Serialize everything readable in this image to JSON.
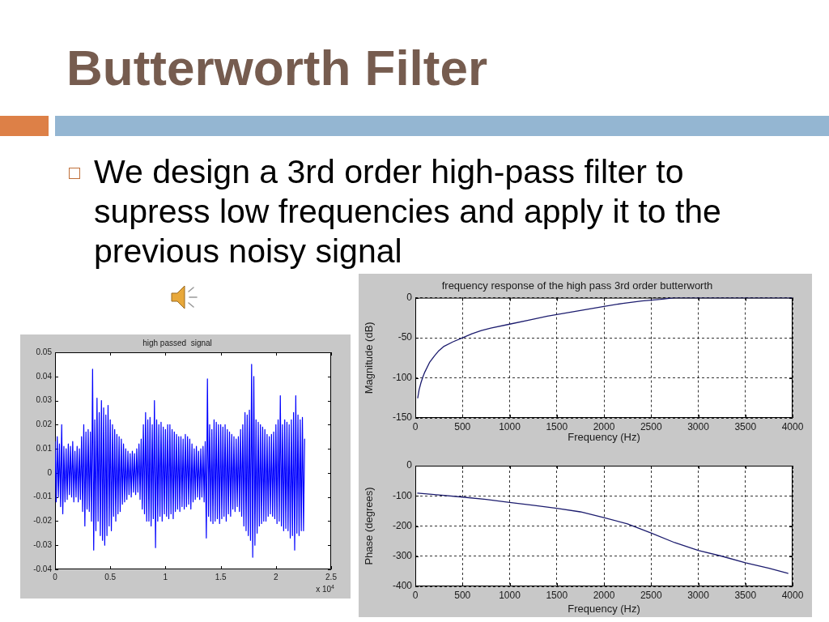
{
  "chart_data": [
    {
      "type": "other",
      "title": "Butterworth Filter",
      "annotations": [
        "We design a 3rd order high-pass filter to supress low frequencies and apply it to the previous noisy signal"
      ]
    },
    {
      "type": "line",
      "title": "high passed  signal",
      "color": "#0000ff",
      "annotations": [
        "x 10$^{4}$"
      ],
      "x": [
        0,
        0.01,
        0.02,
        0.03,
        0.04,
        0.05,
        0.06,
        0.07,
        0.08,
        0.09,
        0.1,
        0.11,
        0.12,
        0.13,
        0.14,
        0.15,
        0.16,
        0.17,
        0.18,
        0.19,
        0.2,
        0.21,
        0.22,
        0.23,
        0.24,
        0.25,
        0.26,
        0.27,
        0.28,
        0.29,
        0.3,
        0.31,
        0.32,
        0.33,
        0.34,
        0.35,
        0.36,
        0.37,
        0.38,
        0.39,
        0.4,
        0.41,
        0.42,
        0.43,
        0.44,
        0.45,
        0.46,
        0.47,
        0.48,
        0.49,
        0.5,
        0.51,
        0.52,
        0.53,
        0.54,
        0.55,
        0.56,
        0.57,
        0.58,
        0.59,
        0.6,
        0.61,
        0.62,
        0.63,
        0.64,
        0.65,
        0.66,
        0.67,
        0.68,
        0.69,
        0.7,
        0.71,
        0.72,
        0.73,
        0.74,
        0.75,
        0.76,
        0.77,
        0.78,
        0.79,
        0.8,
        0.81,
        0.82,
        0.83,
        0.84,
        0.85,
        0.86,
        0.87,
        0.88,
        0.89,
        0.9,
        0.91,
        0.92,
        0.93,
        0.94,
        0.95,
        0.96,
        0.97,
        0.98,
        0.99,
        1,
        1.01,
        1.02,
        1.03,
        1.04,
        1.05,
        1.06,
        1.07,
        1.08,
        1.09,
        1.1,
        1.11,
        1.12,
        1.13,
        1.14,
        1.15,
        1.16,
        1.17,
        1.18,
        1.19,
        1.2,
        1.21,
        1.22,
        1.23,
        1.24,
        1.25,
        1.26,
        1.27,
        1.28,
        1.29,
        1.3,
        1.31,
        1.32,
        1.33,
        1.34,
        1.35,
        1.36,
        1.37,
        1.38,
        1.39,
        1.4,
        1.41,
        1.42,
        1.43,
        1.44,
        1.45,
        1.46,
        1.47,
        1.48,
        1.49,
        1.5,
        1.51,
        1.52,
        1.53,
        1.54,
        1.55,
        1.56,
        1.57,
        1.58,
        1.59,
        1.6,
        1.61,
        1.62,
        1.63,
        1.64,
        1.65,
        1.66,
        1.67,
        1.68,
        1.69,
        1.7,
        1.71,
        1.72,
        1.73,
        1.74,
        1.75,
        1.76,
        1.77,
        1.78,
        1.79,
        1.8,
        1.81,
        1.82,
        1.83,
        1.84,
        1.85,
        1.86,
        1.87,
        1.88,
        1.89,
        1.9,
        1.91,
        1.92,
        1.93,
        1.94,
        1.95,
        1.96,
        1.97,
        1.98,
        1.99,
        2,
        2.01,
        2.02,
        2.03,
        2.04,
        2.05,
        2.06,
        2.07,
        2.08,
        2.09,
        2.1,
        2.11,
        2.12,
        2.13,
        2.14,
        2.15,
        2.16,
        2.17,
        2.18,
        2.19,
        2.2,
        2.21,
        2.22,
        2.23,
        2.24,
        2.25,
        2.26
      ],
      "values": [
        0.013,
        -0.012,
        0.015,
        -0.01,
        0.012,
        -0.014,
        0.02,
        -0.017,
        0.011,
        -0.012,
        0.01,
        -0.011,
        0.012,
        -0.009,
        0.011,
        -0.01,
        0.013,
        -0.012,
        0.009,
        -0.01,
        0.011,
        -0.012,
        0.01,
        -0.011,
        0.015,
        -0.016,
        0.02,
        -0.022,
        0.017,
        -0.015,
        0.018,
        -0.016,
        0.017,
        -0.02,
        0.043,
        -0.032,
        0.022,
        -0.024,
        0.031,
        -0.02,
        0.025,
        -0.026,
        0.03,
        -0.028,
        0.027,
        -0.03,
        0.024,
        -0.026,
        0.028,
        -0.022,
        0.022,
        -0.024,
        0.02,
        -0.018,
        0.018,
        -0.02,
        0.016,
        -0.017,
        0.015,
        -0.016,
        0.014,
        -0.013,
        0.012,
        -0.012,
        0.01,
        -0.011,
        0.009,
        -0.009,
        0.008,
        -0.01,
        0.009,
        -0.008,
        0.008,
        -0.009,
        0.01,
        -0.008,
        0.012,
        -0.011,
        0.014,
        -0.015,
        0.02,
        -0.017,
        0.025,
        -0.02,
        0.022,
        -0.02,
        0.023,
        -0.022,
        0.02,
        -0.019,
        0.03,
        -0.031,
        0.022,
        -0.02,
        0.02,
        -0.018,
        0.021,
        -0.02,
        0.019,
        -0.017,
        0.018,
        -0.018,
        0.02,
        -0.019,
        0.02,
        -0.017,
        0.018,
        -0.019,
        0.017,
        -0.016,
        0.016,
        -0.015,
        0.015,
        -0.016,
        0.015,
        -0.014,
        0.014,
        -0.015,
        0.016,
        -0.014,
        0.015,
        -0.013,
        0.014,
        -0.015,
        0.012,
        -0.012,
        0.01,
        -0.011,
        0.011,
        -0.01,
        0.009,
        -0.011,
        0.01,
        -0.01,
        0.011,
        -0.012,
        0.013,
        -0.027,
        0.039,
        -0.018,
        0.02,
        -0.02,
        0.018,
        -0.021,
        0.022,
        -0.02,
        0.021,
        -0.019,
        0.02,
        -0.021,
        0.02,
        -0.019,
        0.019,
        -0.018,
        0.02,
        -0.02,
        0.018,
        -0.017,
        0.017,
        -0.018,
        0.016,
        -0.015,
        0.015,
        -0.016,
        0.014,
        -0.014,
        0.015,
        -0.016,
        0.018,
        -0.018,
        0.02,
        -0.022,
        0.025,
        -0.024,
        0.024,
        -0.026,
        0.026,
        -0.028,
        0.045,
        -0.035,
        0.04,
        -0.03,
        0.022,
        -0.025,
        0.021,
        -0.022,
        0.02,
        -0.021,
        0.019,
        -0.02,
        0.018,
        -0.02,
        0.016,
        -0.018,
        0.015,
        -0.017,
        0.016,
        -0.018,
        0.017,
        -0.019,
        0.02,
        -0.021,
        0.022,
        -0.02,
        0.032,
        -0.022,
        0.02,
        -0.024,
        0.022,
        -0.023,
        0.021,
        -0.024,
        0.02,
        -0.027,
        0.022,
        -0.026,
        0.025,
        -0.032,
        0.032,
        -0.025,
        0.024,
        -0.026,
        0.022,
        -0.024,
        0.023,
        -0.024,
        0.014
      ],
      "xlim": [
        0,
        2.5
      ],
      "xticks": [
        0,
        0.5,
        1,
        1.5,
        2,
        2.5
      ],
      "ylim": [
        -0.04,
        0.05
      ],
      "yticks": [
        -0.04,
        -0.03,
        -0.02,
        -0.01,
        0,
        0.01,
        0.02,
        0.03,
        0.04,
        0.05
      ],
      "grid": false
    },
    {
      "type": "line",
      "title": "frequency response of the high pass 3rd order butterworth",
      "xlabel": "Frequency (Hz)",
      "ylabel": "Magnitude (dB)",
      "color": "#1c1c6e",
      "x": [
        26,
        40,
        60,
        80,
        100,
        150,
        200,
        250,
        300,
        400,
        500,
        600,
        700,
        800,
        1000,
        1200,
        1400,
        1600,
        1800,
        2000,
        2200,
        2400,
        2600,
        2750,
        3000,
        3500,
        4000
      ],
      "values": [
        -125,
        -115,
        -106,
        -99,
        -93,
        -81,
        -73,
        -66,
        -61,
        -55,
        -50,
        -45,
        -41,
        -38,
        -33,
        -28,
        -23,
        -19,
        -15,
        -11,
        -7,
        -4,
        -2,
        0,
        0,
        0,
        0
      ],
      "xlim": [
        0,
        4000
      ],
      "xticks": [
        0,
        500,
        1000,
        1500,
        2000,
        2500,
        3000,
        3500,
        4000
      ],
      "ylim": [
        -150,
        0
      ],
      "yticks": [
        -150,
        -100,
        -50,
        0
      ],
      "grid": true
    },
    {
      "type": "line",
      "xlabel": "Frequency (Hz)",
      "ylabel": "Phase (degrees)",
      "color": "#1c1c6e",
      "x": [
        25,
        250,
        500,
        750,
        1000,
        1250,
        1500,
        1750,
        2000,
        2250,
        2500,
        2750,
        3000,
        3250,
        3500,
        3750,
        3950
      ],
      "values": [
        -91,
        -97,
        -104,
        -112,
        -122,
        -131,
        -141,
        -153,
        -172,
        -193,
        -223,
        -255,
        -281,
        -300,
        -322,
        -340,
        -357
      ],
      "xlim": [
        0,
        4000
      ],
      "xticks": [
        0,
        500,
        1000,
        1500,
        2000,
        2500,
        3000,
        3500,
        4000
      ],
      "ylim": [
        -400,
        0
      ],
      "yticks": [
        -400,
        -300,
        -200,
        -100,
        0
      ],
      "grid": true
    }
  ]
}
